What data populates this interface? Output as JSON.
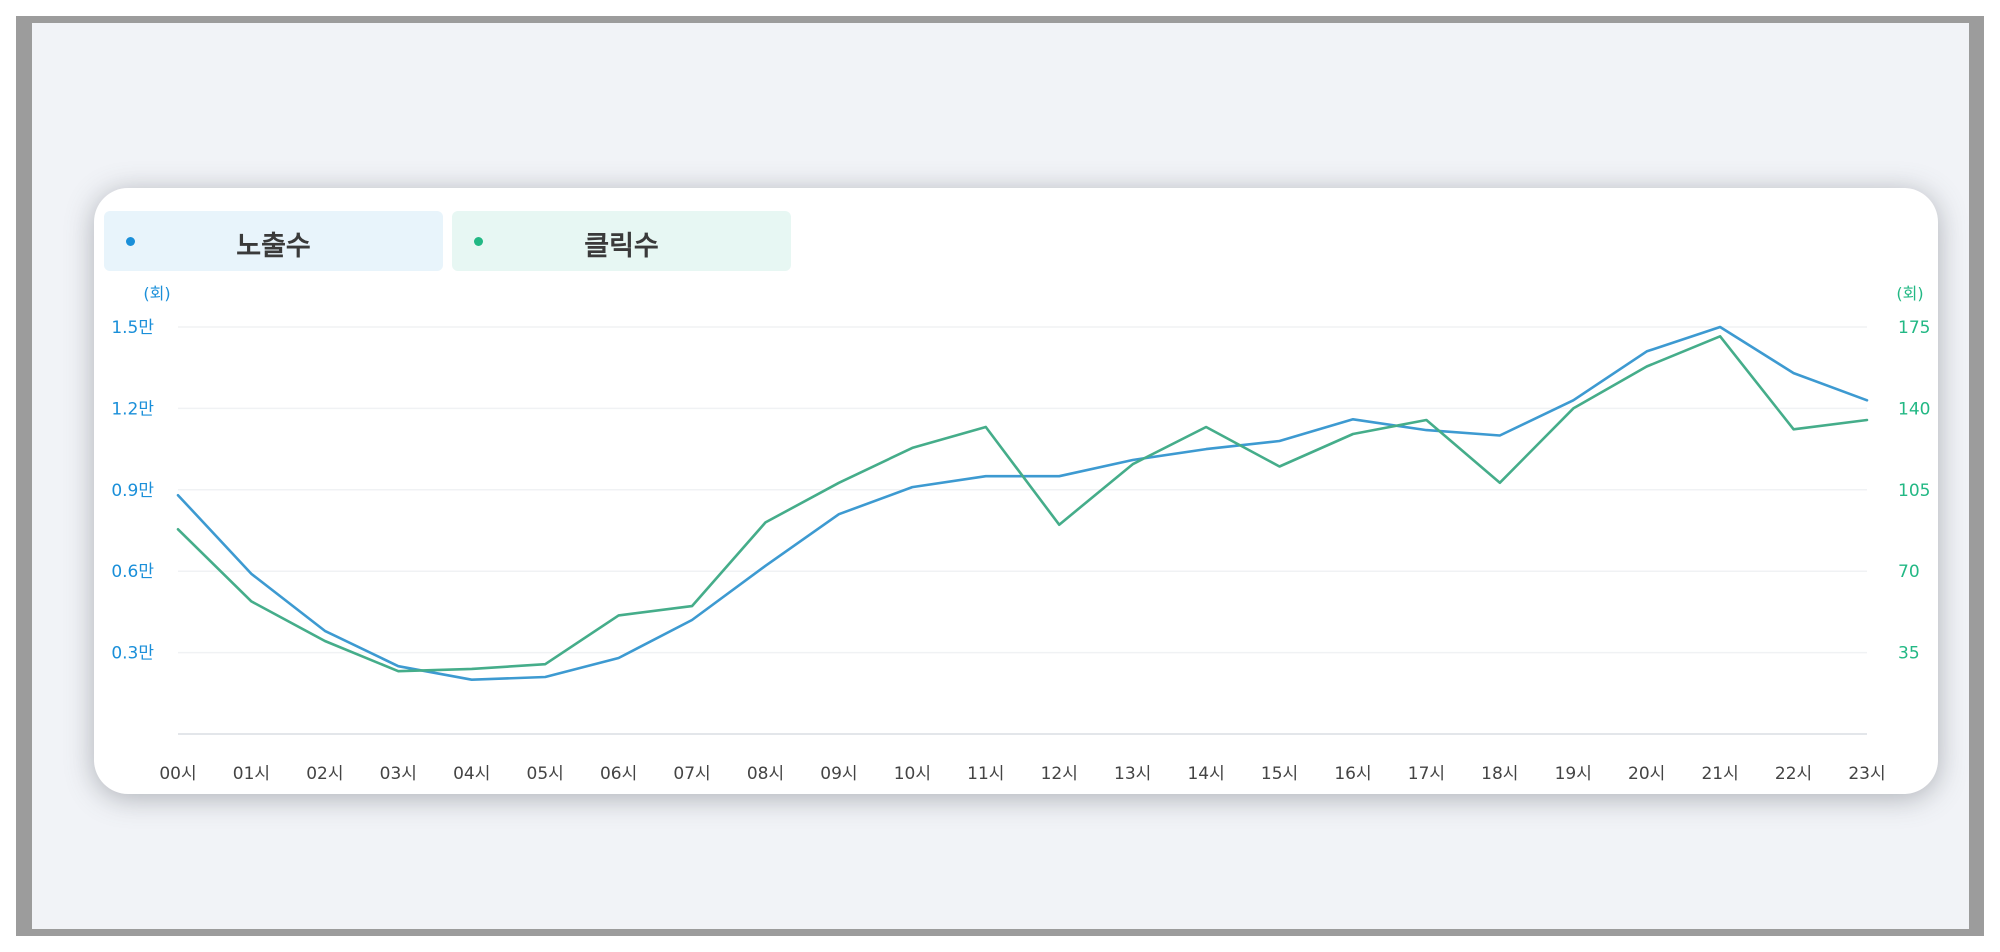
{
  "legend": {
    "impressions_label": "노출수",
    "clicks_label": "클릭수"
  },
  "colors": {
    "impressions": "#3d9ad1",
    "clicks": "#45ad8a",
    "impressions_dot": "#1a8fd9",
    "clicks_dot": "#22b884",
    "grid": "#f0f2f4",
    "axis": "#e3e6ea",
    "tick_text": "#444444"
  },
  "chart_data": {
    "type": "line",
    "x": [
      "00시",
      "01시",
      "02시",
      "03시",
      "04시",
      "05시",
      "06시",
      "07시",
      "08시",
      "09시",
      "10시",
      "11시",
      "12시",
      "13시",
      "14시",
      "15시",
      "16시",
      "17시",
      "18시",
      "19시",
      "20시",
      "21시",
      "22시",
      "23시"
    ],
    "y_left": {
      "unit_label": "(회)",
      "ylim": [
        0,
        15000
      ],
      "ticks": [
        3000,
        6000,
        9000,
        12000,
        15000
      ],
      "tick_labels": [
        "0.3만",
        "0.6만",
        "0.9만",
        "1.2만",
        "1.5만"
      ]
    },
    "y_right": {
      "unit_label": "(회)",
      "ylim": [
        0,
        175
      ],
      "ticks": [
        35,
        70,
        105,
        140,
        175
      ],
      "tick_labels": [
        "35",
        "70",
        "105",
        "140",
        "175"
      ]
    },
    "series": [
      {
        "name": "노출수",
        "axis": "left",
        "values": [
          8800,
          5900,
          3800,
          2500,
          2000,
          2100,
          2800,
          4200,
          6200,
          8100,
          9100,
          9500,
          9500,
          10100,
          10500,
          10800,
          11600,
          11200,
          11000,
          12300,
          14100,
          15000,
          13300,
          12300
        ]
      },
      {
        "name": "클릭수",
        "axis": "right",
        "values": [
          88,
          57,
          40,
          27,
          28,
          30,
          51,
          55,
          91,
          108,
          123,
          132,
          90,
          116,
          132,
          115,
          129,
          135,
          108,
          140,
          158,
          171,
          131,
          135
        ]
      }
    ],
    "grid": true
  }
}
